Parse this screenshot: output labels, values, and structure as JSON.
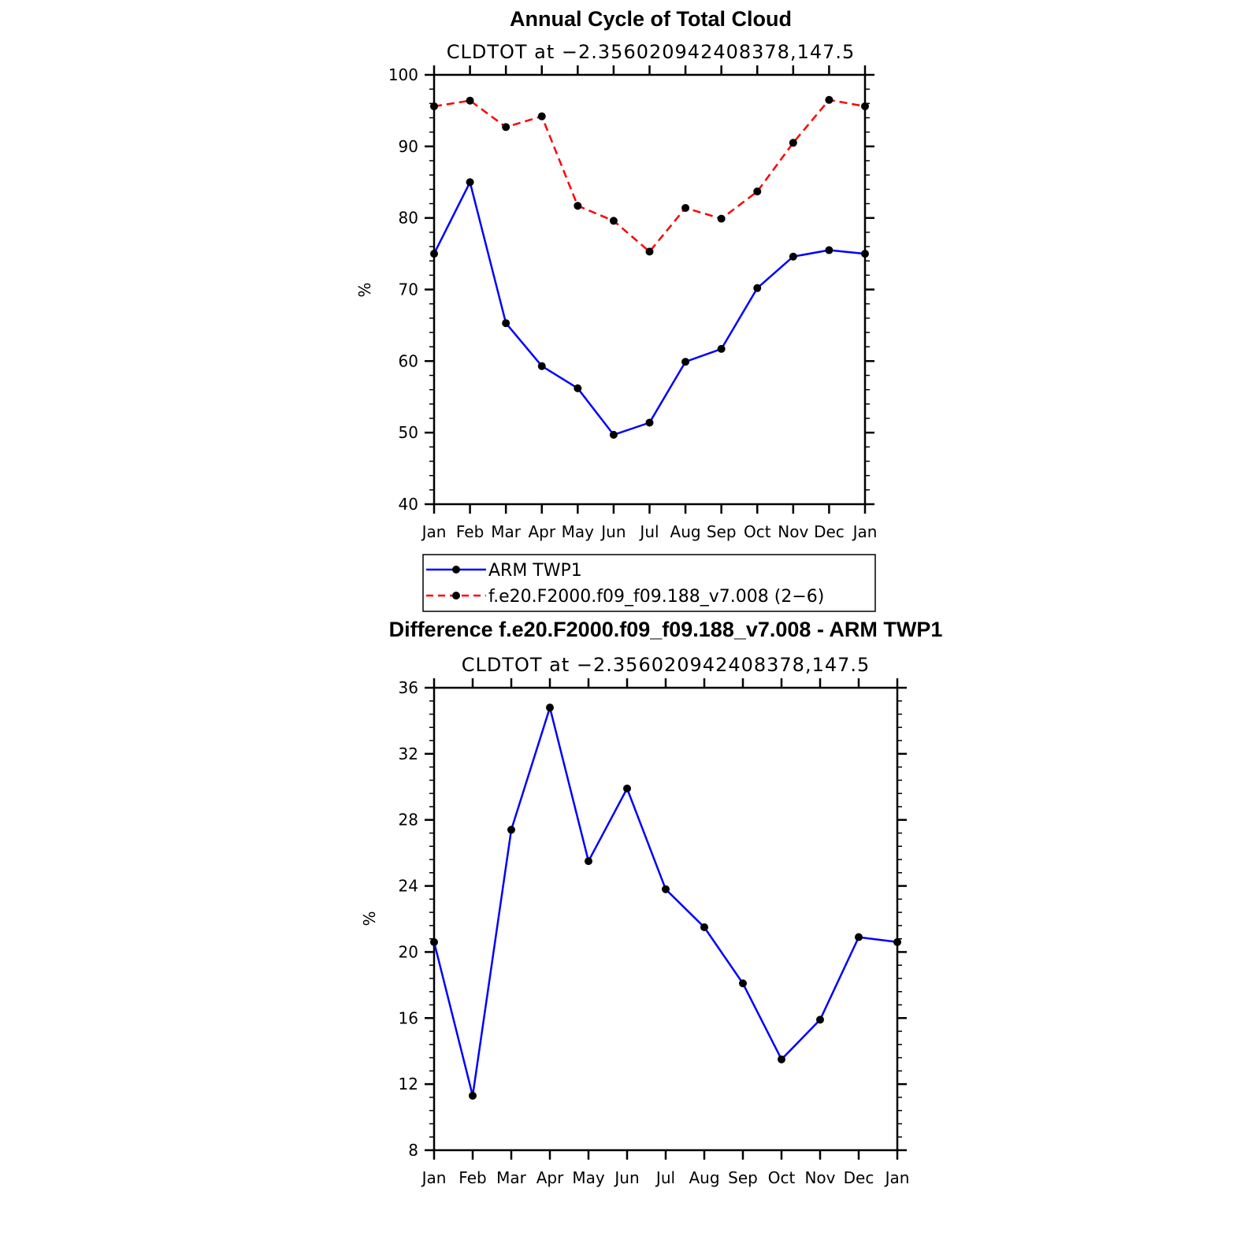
{
  "chart_data": [
    {
      "type": "line",
      "title": "Annual Cycle of Total Cloud",
      "subtitle": "CLDTOT at −2.356020942408378,147.5",
      "xlabel": "",
      "ylabel": "%",
      "categories": [
        "Jan",
        "Feb",
        "Mar",
        "Apr",
        "May",
        "Jun",
        "Jul",
        "Aug",
        "Sep",
        "Oct",
        "Nov",
        "Dec",
        "Jan"
      ],
      "ylim": [
        40,
        100
      ],
      "yticks": [
        40,
        50,
        60,
        70,
        80,
        90,
        100
      ],
      "grid": false,
      "legend_position": "below",
      "series": [
        {
          "name": "ARM  TWP1",
          "color": "#0000ff",
          "dash": "solid",
          "values": [
            75.0,
            85.0,
            65.3,
            59.3,
            56.2,
            49.7,
            51.4,
            59.9,
            61.7,
            70.2,
            74.6,
            75.5,
            75.0
          ]
        },
        {
          "name": "f.e20.F2000.f09_f09.188_v7.008 (2−6)",
          "color": "#ff0000",
          "dash": "dashed",
          "values": [
            95.6,
            96.4,
            92.7,
            94.2,
            81.7,
            79.6,
            75.3,
            81.4,
            79.9,
            83.7,
            90.5,
            96.5,
            95.6
          ]
        }
      ]
    },
    {
      "type": "line",
      "title": "Difference f.e20.F2000.f09_f09.188_v7.008 - ARM TWP1",
      "subtitle": "CLDTOT at −2.356020942408378,147.5",
      "xlabel": "",
      "ylabel": "%",
      "categories": [
        "Jan",
        "Feb",
        "Mar",
        "Apr",
        "May",
        "Jun",
        "Jul",
        "Aug",
        "Sep",
        "Oct",
        "Nov",
        "Dec",
        "Jan"
      ],
      "ylim": [
        8,
        36
      ],
      "yticks": [
        8,
        12,
        16,
        20,
        24,
        28,
        32,
        36
      ],
      "grid": false,
      "series": [
        {
          "name": "Difference",
          "color": "#0000ff",
          "dash": "solid",
          "values": [
            20.6,
            11.3,
            27.4,
            34.8,
            25.5,
            29.9,
            23.8,
            21.5,
            18.1,
            13.5,
            15.9,
            20.9,
            20.6
          ]
        }
      ]
    }
  ]
}
